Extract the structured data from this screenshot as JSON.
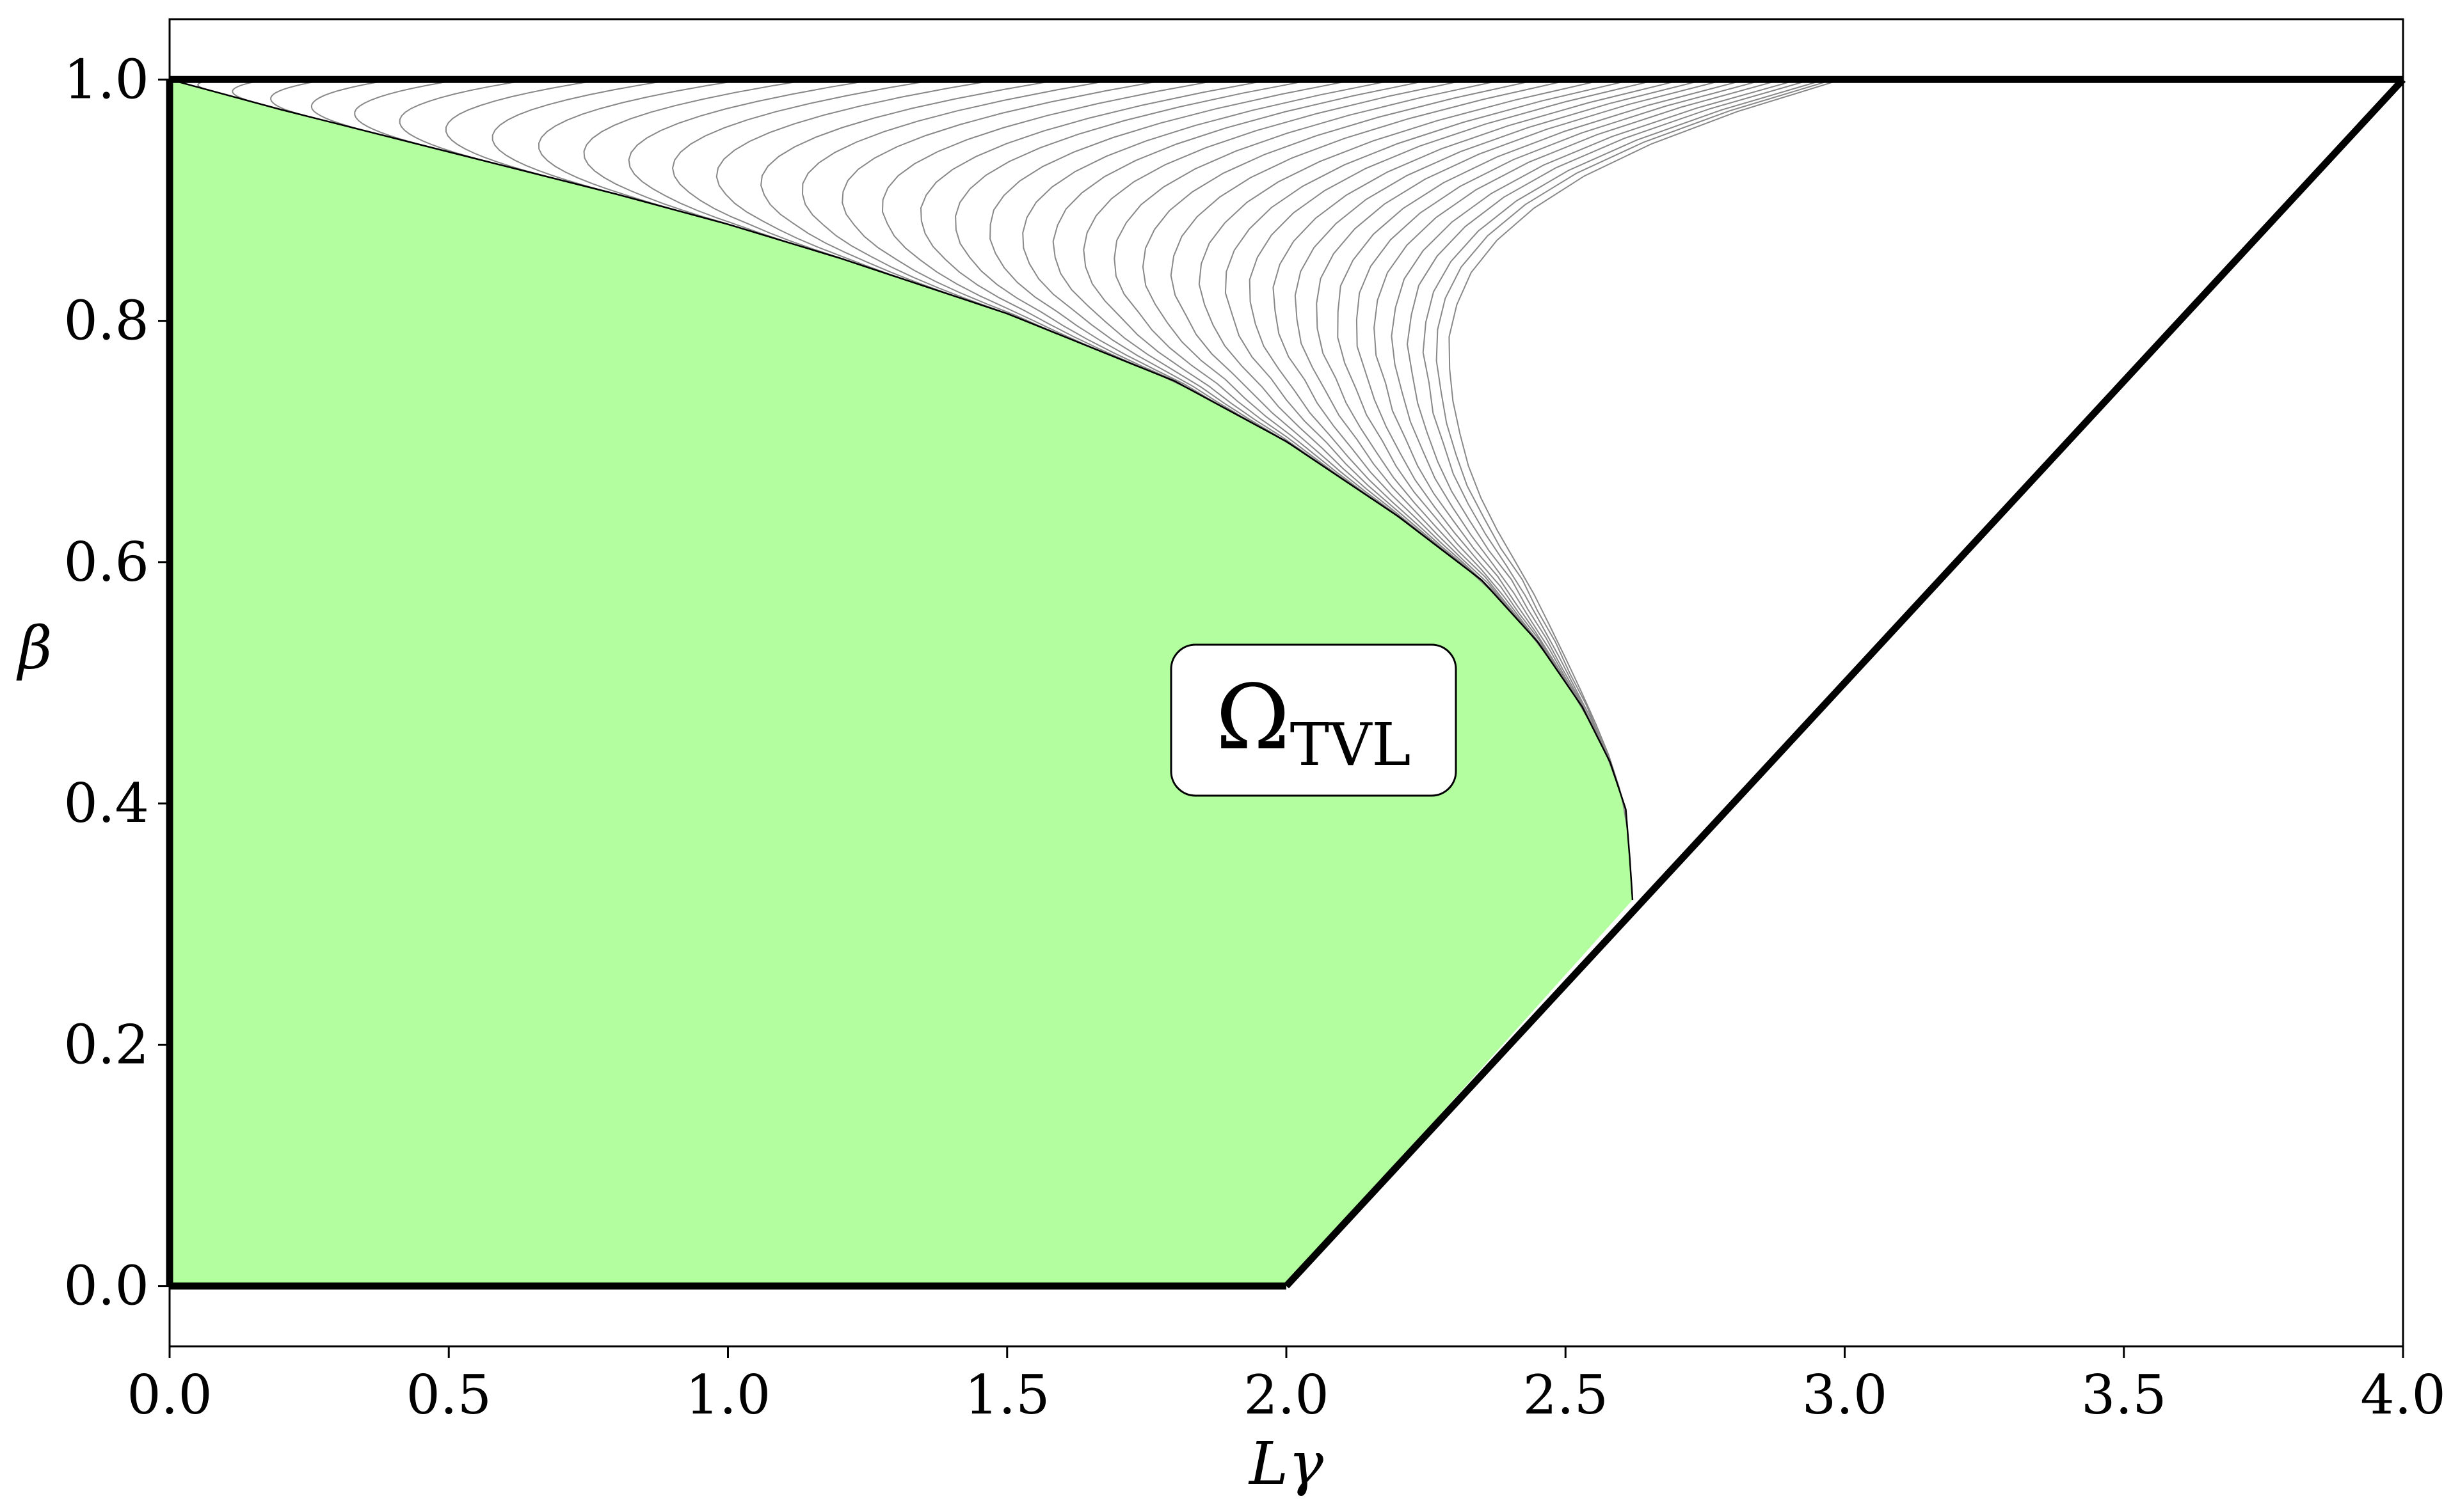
{
  "chart_data": {
    "type": "area",
    "title": "",
    "xlabel": "Lγ",
    "ylabel": "β",
    "xlim": [
      0.0,
      4.0
    ],
    "ylim": [
      -0.05,
      1.05
    ],
    "xticks": [
      "0.0",
      "0.5",
      "1.0",
      "1.5",
      "2.0",
      "2.5",
      "3.0",
      "3.5",
      "4.0"
    ],
    "yticks": [
      "0.0",
      "0.2",
      "0.4",
      "0.6",
      "0.8",
      "1.0"
    ],
    "grid": false,
    "annotation": {
      "main": "Ω",
      "sub": "TVL",
      "x": 2.04,
      "y": 0.47
    },
    "region": {
      "name": "Ω_TVL",
      "color": "#b3ffa0",
      "upper_boundary": [
        [
          0.0,
          1.0
        ],
        [
          0.2,
          0.975
        ],
        [
          0.5,
          0.94
        ],
        [
          0.8,
          0.905
        ],
        [
          1.0,
          0.88
        ],
        [
          1.2,
          0.852
        ],
        [
          1.5,
          0.806
        ],
        [
          1.8,
          0.75
        ],
        [
          2.0,
          0.7
        ],
        [
          2.2,
          0.638
        ],
        [
          2.35,
          0.585
        ],
        [
          2.45,
          0.534
        ],
        [
          2.53,
          0.48
        ],
        [
          2.58,
          0.434
        ],
        [
          2.608,
          0.395
        ],
        [
          2.615,
          0.355
        ],
        [
          2.62,
          0.32
        ]
      ],
      "lower_boundary": [
        [
          0.0,
          0.0
        ],
        [
          2.0,
          0.0
        ],
        [
          2.62,
          0.32
        ]
      ]
    },
    "boundary_lines": [
      {
        "name": "top",
        "points": [
          [
            0.0,
            1.0
          ],
          [
            4.0,
            1.0
          ]
        ]
      },
      {
        "name": "left",
        "points": [
          [
            0.0,
            0.0
          ],
          [
            0.0,
            1.0
          ]
        ]
      },
      {
        "name": "bottom",
        "points": [
          [
            0.0,
            0.0
          ],
          [
            2.0,
            0.0
          ]
        ]
      },
      {
        "name": "diagonal",
        "points": [
          [
            2.0,
            0.0
          ],
          [
            4.0,
            1.0
          ]
        ]
      }
    ],
    "family_curves": {
      "count": 40,
      "color": "#888888",
      "top_x_end": 3.0,
      "envelope_ref": "region.upper_boundary"
    }
  }
}
